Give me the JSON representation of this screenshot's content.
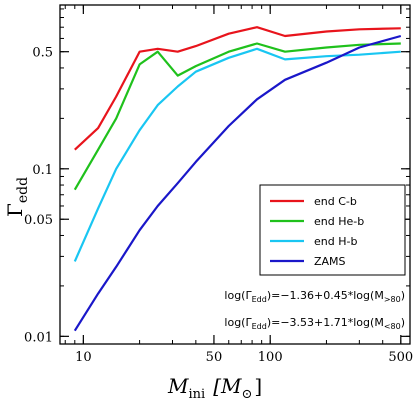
{
  "chart_data": {
    "type": "line",
    "xscale": "log",
    "yscale": "log",
    "xlim": [
      7.5,
      560
    ],
    "ylim": [
      0.009,
      0.95
    ],
    "xticks": [
      10,
      50,
      100,
      500
    ],
    "xtick_labels": [
      "10",
      "50",
      "100",
      "500"
    ],
    "yticks": [
      0.01,
      0.05,
      0.1,
      0.5
    ],
    "ytick_labels": [
      "0.01",
      "0.05",
      "0.1",
      "0.5"
    ],
    "xlabel": {
      "main": "M",
      "sub": "ini",
      "unit_open": "[M",
      "unit_sub": "⊙",
      "unit_close": "]"
    },
    "ylabel": {
      "main": "Γ",
      "sub": "edd"
    },
    "grid": false,
    "legend_position": "center-right",
    "series": [
      {
        "name": "end C-b",
        "color": "#e8141c",
        "x": [
          9,
          12,
          15,
          20,
          25,
          32,
          40,
          60,
          85,
          120,
          200,
          300,
          500
        ],
        "y": [
          0.13,
          0.175,
          0.27,
          0.5,
          0.52,
          0.5,
          0.54,
          0.64,
          0.7,
          0.62,
          0.66,
          0.68,
          0.69
        ]
      },
      {
        "name": "end He-b",
        "color": "#1fc11c",
        "x": [
          9,
          12,
          15,
          20,
          25,
          32,
          40,
          60,
          85,
          120,
          200,
          300,
          500
        ],
        "y": [
          0.075,
          0.13,
          0.2,
          0.42,
          0.5,
          0.36,
          0.41,
          0.5,
          0.56,
          0.5,
          0.53,
          0.55,
          0.56
        ]
      },
      {
        "name": "end H-b",
        "color": "#19c6f2",
        "x": [
          9,
          12,
          15,
          20,
          25,
          32,
          40,
          60,
          85,
          120,
          200,
          300,
          500
        ],
        "y": [
          0.028,
          0.058,
          0.1,
          0.17,
          0.24,
          0.31,
          0.38,
          0.46,
          0.52,
          0.45,
          0.47,
          0.48,
          0.5
        ]
      },
      {
        "name": "ZAMS",
        "color": "#1a17c9",
        "x": [
          9,
          12,
          15,
          20,
          25,
          32,
          40,
          60,
          85,
          120,
          200,
          300,
          500
        ],
        "y": [
          0.0108,
          0.018,
          0.026,
          0.043,
          0.06,
          0.082,
          0.11,
          0.18,
          0.26,
          0.34,
          0.43,
          0.53,
          0.62
        ]
      }
    ],
    "annotations": [
      {
        "id": "fit-high",
        "parts": [
          "log(Γ",
          "Edd",
          ")=−1.36+0.45*log(M",
          ">80",
          ")"
        ]
      },
      {
        "id": "fit-low",
        "parts": [
          "log(Γ",
          "Edd",
          ")=−3.53+1.71*log(M",
          "<80",
          ")"
        ]
      }
    ]
  }
}
